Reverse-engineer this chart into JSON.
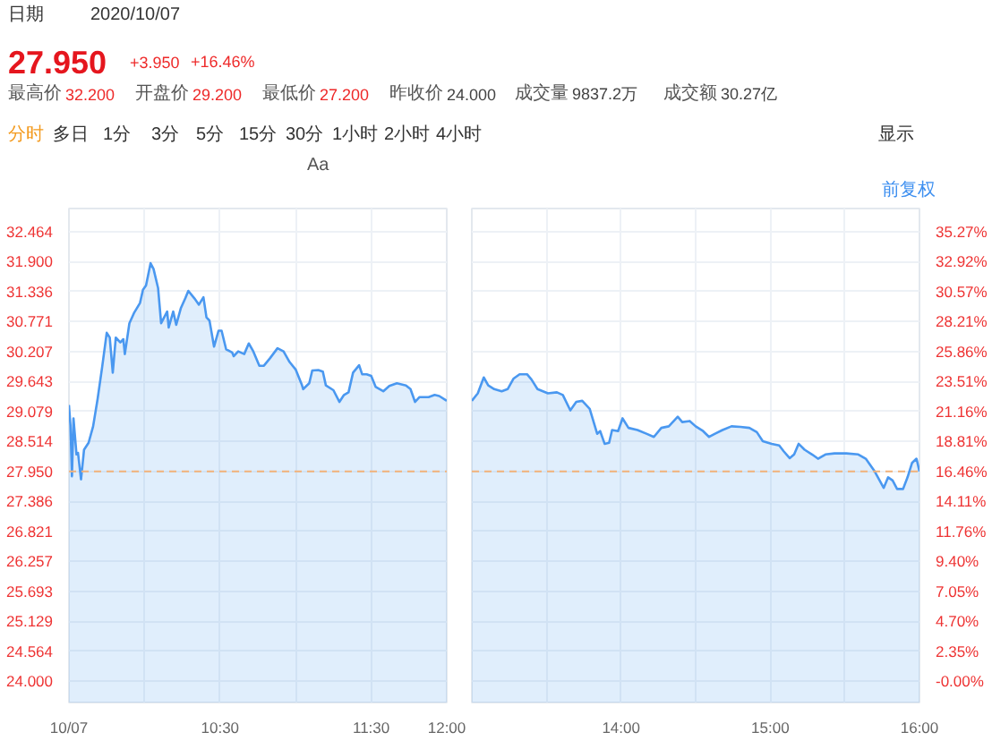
{
  "chart_data": [
    {
      "type": "other",
      "title": "27.950",
      "annotations": [
        "日期",
        "2020/10/07",
        "+3.950",
        "+16.46%",
        "最高价",
        "32.200",
        "开盘价",
        "29.200",
        "最低价",
        "27.200",
        "昨收价",
        "24.000",
        "成交量",
        "9837.2万",
        "成交额",
        "30.27亿",
        "分时",
        "多日",
        "1分",
        "3分",
        "5分",
        "15分",
        "30分",
        "1小时",
        "2小时",
        "4小时",
        "显示",
        "Aa",
        "前复权"
      ]
    },
    {
      "type": "area",
      "color": "#4a98f0",
      "grid": true,
      "xlim": [
        9.5,
        12
      ],
      "ylim": [
        23.6,
        32.9
      ],
      "xticks": [
        {
          "value": 9.5,
          "label": "10/07"
        },
        {
          "value": 10,
          "label": null
        },
        {
          "value": 10.5,
          "label": "10:30"
        },
        {
          "value": 11,
          "label": null
        },
        {
          "value": 11.5,
          "label": "11:30"
        },
        {
          "value": 12,
          "label": "12:00"
        }
      ],
      "yticks": [
        {
          "value": 24,
          "label": "24.000"
        },
        24.564,
        25.129,
        25.693,
        26.257,
        26.821,
        27.386,
        {
          "value": 27.95,
          "label": "27.950"
        },
        28.514,
        29.079,
        29.643,
        30.207,
        30.771,
        31.336,
        {
          "value": 31.9,
          "label": "31.900"
        },
        32.464
      ],
      "ref_lines": [
        {
          "axis": "y",
          "value": 27.95,
          "color": "#f2b27a",
          "line_style": "dashed"
        }
      ],
      "x": [
        9.5,
        9.51,
        9.52,
        9.53,
        9.55,
        9.56,
        9.58,
        9.6,
        9.63,
        9.66,
        9.69,
        9.72,
        9.75,
        9.77,
        9.79,
        9.81,
        9.84,
        9.86,
        9.87,
        9.9,
        9.93,
        9.97,
        9.99,
        10.01,
        10.04,
        10.06,
        10.09,
        10.11,
        10.15,
        10.16,
        10.19,
        10.21,
        10.24,
        10.27,
        10.29,
        10.33,
        10.36,
        10.39,
        10.41,
        10.43,
        10.46,
        10.49,
        10.51,
        10.54,
        10.58,
        10.59,
        10.62,
        10.66,
        10.69,
        10.72,
        10.76,
        10.79,
        10.83,
        10.88,
        10.92,
        10.96,
        11.0,
        11.04,
        11.05,
        11.09,
        11.11,
        11.15,
        11.18,
        11.2,
        11.25,
        11.29,
        11.32,
        11.35,
        11.38,
        11.42,
        11.44,
        11.47,
        11.5,
        11.53,
        11.58,
        11.62,
        11.67,
        11.73,
        11.76,
        11.79,
        11.82,
        11.88,
        11.92,
        11.95,
        12.0
      ],
      "values": [
        29.2,
        28.82,
        27.86,
        28.95,
        28.27,
        28.3,
        27.8,
        28.36,
        28.49,
        28.8,
        29.32,
        29.92,
        30.56,
        30.47,
        29.81,
        30.47,
        30.38,
        30.44,
        30.16,
        30.74,
        30.93,
        31.12,
        31.37,
        31.45,
        31.87,
        31.76,
        31.4,
        30.74,
        30.96,
        30.66,
        30.96,
        30.71,
        31.02,
        31.21,
        31.35,
        31.21,
        31.09,
        31.23,
        30.85,
        30.79,
        30.3,
        30.6,
        30.6,
        30.25,
        30.19,
        30.12,
        30.21,
        30.16,
        30.36,
        30.21,
        29.94,
        29.94,
        30.08,
        30.27,
        30.21,
        30.01,
        29.87,
        29.59,
        29.5,
        29.61,
        29.85,
        29.86,
        29.83,
        29.57,
        29.48,
        29.26,
        29.39,
        29.44,
        29.81,
        29.95,
        29.78,
        29.78,
        29.75,
        29.54,
        29.46,
        29.56,
        29.61,
        29.57,
        29.5,
        29.26,
        29.35,
        29.35,
        29.39,
        29.37,
        29.28
      ]
    },
    {
      "type": "area",
      "color": "#4a98f0",
      "grid": true,
      "xlim": [
        13,
        16
      ],
      "ylim": [
        23.6,
        32.9
      ],
      "y2lim": [
        -1.67,
        37.08
      ],
      "xticks": [
        {
          "value": 13.5,
          "label": null
        },
        {
          "value": 14,
          "label": "14:00"
        },
        {
          "value": 14.5,
          "label": null
        },
        {
          "value": 15,
          "label": "15:00"
        },
        {
          "value": 15.5,
          "label": null
        },
        {
          "value": 16,
          "label": "16:00"
        }
      ],
      "y2ticks": [
        {
          "value": 0,
          "label": "-0.00%"
        },
        {
          "value": 2.35,
          "label": "2.35%"
        },
        {
          "value": 4.7,
          "label": "4.70%"
        },
        {
          "value": 7.05,
          "label": "7.05%"
        },
        {
          "value": 9.4,
          "label": "9.40%"
        },
        {
          "value": 11.76,
          "label": "11.76%"
        },
        {
          "value": 14.11,
          "label": "14.11%"
        },
        {
          "value": 16.46,
          "label": "16.46%"
        },
        {
          "value": 18.81,
          "label": "18.81%"
        },
        {
          "value": 21.16,
          "label": "21.16%"
        },
        {
          "value": 23.51,
          "label": "23.51%"
        },
        {
          "value": 25.86,
          "label": "25.86%"
        },
        {
          "value": 28.21,
          "label": "28.21%"
        },
        {
          "value": 30.57,
          "label": "30.57%"
        },
        {
          "value": 32.92,
          "label": "32.92%"
        },
        {
          "value": 35.27,
          "label": "35.27%"
        }
      ],
      "ref_lines": [
        {
          "axis": "y",
          "value": 27.95,
          "color": "#f2b27a",
          "line_style": "dashed"
        }
      ],
      "x": [
        13.0,
        13.04,
        13.08,
        13.11,
        13.15,
        13.2,
        13.24,
        13.28,
        13.32,
        13.37,
        13.4,
        13.44,
        13.51,
        13.57,
        13.61,
        13.66,
        13.7,
        13.74,
        13.79,
        13.84,
        13.86,
        13.89,
        13.92,
        13.94,
        13.98,
        14.01,
        14.05,
        14.11,
        14.17,
        14.22,
        14.27,
        14.32,
        14.38,
        14.41,
        14.46,
        14.5,
        14.55,
        14.59,
        14.63,
        14.68,
        14.74,
        14.8,
        14.86,
        14.91,
        14.95,
        15.01,
        15.06,
        15.09,
        15.13,
        15.16,
        15.19,
        15.23,
        15.28,
        15.32,
        15.37,
        15.43,
        15.51,
        15.59,
        15.64,
        15.7,
        15.76,
        15.79,
        15.82,
        15.85,
        15.89,
        15.92,
        15.95,
        15.98,
        16.0
      ],
      "values": [
        29.28,
        29.42,
        29.72,
        29.57,
        29.5,
        29.46,
        29.5,
        29.7,
        29.78,
        29.78,
        29.68,
        29.5,
        29.42,
        29.44,
        29.39,
        29.1,
        29.26,
        29.28,
        29.13,
        28.66,
        28.71,
        28.47,
        28.49,
        28.73,
        28.71,
        28.95,
        28.77,
        28.73,
        28.66,
        28.6,
        28.77,
        28.8,
        28.98,
        28.88,
        28.9,
        28.8,
        28.71,
        28.6,
        28.66,
        28.73,
        28.8,
        28.79,
        28.77,
        28.69,
        28.52,
        28.47,
        28.44,
        28.33,
        28.2,
        28.27,
        28.47,
        28.36,
        28.27,
        28.19,
        28.27,
        28.29,
        28.29,
        28.27,
        28.19,
        27.95,
        27.64,
        27.84,
        27.78,
        27.62,
        27.62,
        27.84,
        28.11,
        28.19,
        27.95
      ]
    }
  ]
}
